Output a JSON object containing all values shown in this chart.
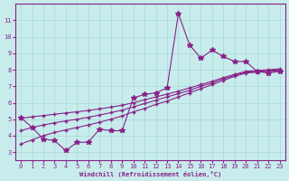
{
  "xlabel": "Windchill (Refroidissement éolien,°C)",
  "x_values": [
    0,
    1,
    2,
    3,
    4,
    5,
    6,
    7,
    8,
    9,
    10,
    11,
    12,
    13,
    14,
    15,
    16,
    17,
    18,
    19,
    20,
    21,
    22,
    23
  ],
  "line1_y": [
    5.1,
    4.5,
    3.8,
    3.7,
    3.1,
    3.6,
    3.6,
    4.4,
    4.3,
    4.3,
    6.3,
    6.5,
    6.6,
    6.9,
    11.4,
    9.5,
    8.7,
    9.2,
    8.8,
    8.5,
    8.5,
    7.9,
    7.8,
    7.9
  ],
  "line2_y": [
    3.5,
    3.75,
    4.0,
    4.2,
    4.35,
    4.5,
    4.65,
    4.82,
    5.0,
    5.2,
    5.45,
    5.65,
    5.9,
    6.1,
    6.35,
    6.6,
    6.85,
    7.1,
    7.35,
    7.6,
    7.8,
    7.85,
    7.9,
    7.95
  ],
  "line3_y": [
    4.3,
    4.5,
    4.65,
    4.78,
    4.9,
    5.0,
    5.12,
    5.25,
    5.4,
    5.55,
    5.75,
    5.95,
    6.15,
    6.35,
    6.55,
    6.75,
    7.0,
    7.2,
    7.45,
    7.65,
    7.85,
    7.9,
    7.95,
    8.0
  ],
  "line4_y": [
    5.05,
    5.15,
    5.22,
    5.3,
    5.38,
    5.45,
    5.53,
    5.63,
    5.73,
    5.85,
    6.0,
    6.18,
    6.35,
    6.52,
    6.7,
    6.9,
    7.1,
    7.3,
    7.52,
    7.72,
    7.9,
    7.95,
    8.0,
    8.05
  ],
  "color": "#882288",
  "bg_color": "#c8ecec",
  "grid_color": "#a8d8d8",
  "ylim": [
    2.5,
    12.0
  ],
  "xlim": [
    -0.5,
    23.5
  ],
  "yticks": [
    3,
    4,
    5,
    6,
    7,
    8,
    9,
    10,
    11
  ],
  "xticks": [
    0,
    1,
    2,
    3,
    4,
    5,
    6,
    7,
    8,
    9,
    10,
    11,
    12,
    13,
    14,
    15,
    16,
    17,
    18,
    19,
    20,
    21,
    22,
    23
  ],
  "marker": "*",
  "markersize": 4.0,
  "linewidth": 0.8
}
